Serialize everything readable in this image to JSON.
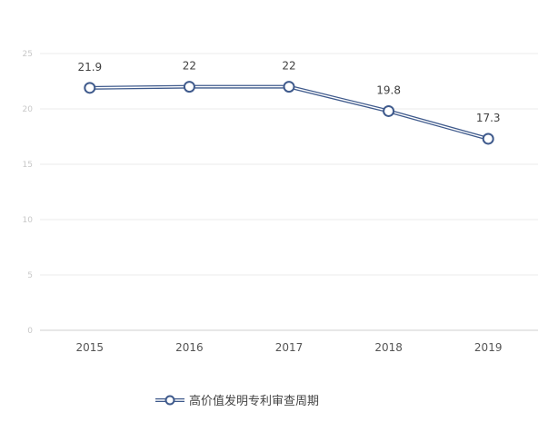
{
  "chart_data": {
    "type": "line",
    "title": "",
    "xlabel": "",
    "ylabel": "",
    "categories": [
      "2015",
      "2016",
      "2017",
      "2018",
      "2019"
    ],
    "series": [
      {
        "name": "高价值发明专利审查周期",
        "values": [
          21.9,
          22,
          22,
          19.8,
          17.3
        ]
      }
    ],
    "data_labels": [
      "21.9",
      "22",
      "22",
      "19.8",
      "17.3"
    ],
    "y_ticks": [
      "0",
      "5",
      "10",
      "15",
      "20",
      "25"
    ],
    "ylim": [
      0,
      25
    ],
    "grid": true,
    "legend_position": "bottom",
    "colors": {
      "line": "#3f5a8c",
      "marker_fill": "#ffffff",
      "grid": "#ebebeb",
      "axis": "#cfcfcf"
    }
  }
}
